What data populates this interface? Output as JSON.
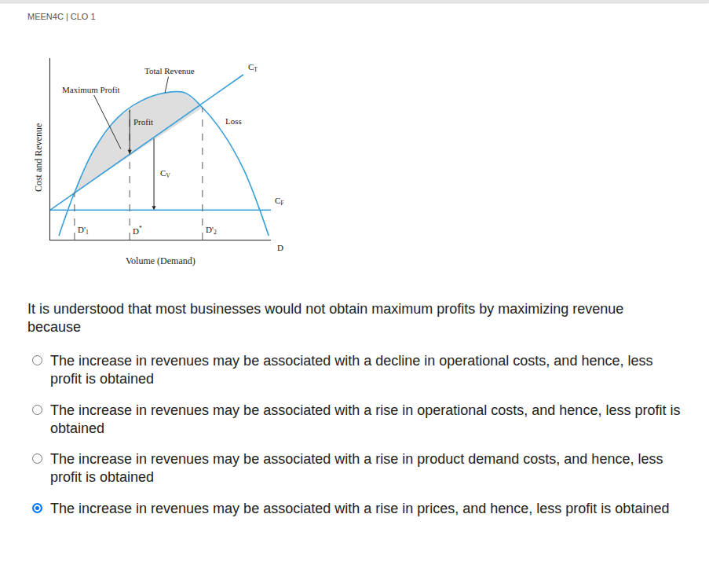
{
  "header": "MEEN4C | CLO 1",
  "chart_data": {
    "type": "line",
    "x_label": "Volume (Demand)",
    "y_label": "Cost and Revenue",
    "axis_end_label": "D",
    "xlim": [
      0,
      100
    ],
    "ylim": [
      0,
      110
    ],
    "xticks": [],
    "yticks": [],
    "tick_labels": false,
    "grid": false,
    "series": [
      {
        "name": "Total Revenue",
        "color": "#3a9fd8",
        "x": [
          3.9,
          11,
          20,
          30.6,
          41,
          52,
          61,
          69,
          78.6,
          87.5,
          94.7,
          99
        ],
        "values": [
          2.4,
          28.6,
          55,
          74,
          84,
          89,
          89,
          80,
          64,
          43,
          19,
          2.4
        ]
      },
      {
        "name": "C",
        "sub": "T",
        "color": "#3a9fd8",
        "x": [
          0,
          87.5
        ],
        "values": [
          18,
          100
        ]
      },
      {
        "name": "C",
        "sub": "F",
        "color": "#3a9fd8",
        "x": [
          0,
          100
        ],
        "values": [
          18,
          18
        ]
      }
    ],
    "profit_region": {
      "from": 11,
      "to": 69
    },
    "demand_marks": [
      {
        "name": "D'",
        "sub": "1",
        "x": 11,
        "y": 28.6
      },
      {
        "name": "D",
        "sup": "*",
        "x": 36,
        "y": 79
      },
      {
        "name": "D'",
        "sub": "2",
        "x": 69,
        "y": 80
      }
    ],
    "profit": {
      "name": "Profit",
      "x": 36,
      "y_top": 79,
      "y_bottom": 52
    },
    "variable_cost": {
      "name": "C",
      "sub": "V",
      "x": 47,
      "y_top": 62,
      "y_bottom": 18
    },
    "maximum_profit": {
      "name": "Maximum Profit",
      "x": 32,
      "y": 55
    },
    "loss": {
      "name": "Loss",
      "x": 83,
      "y": 72
    }
  },
  "question": "It is understood that most businesses would not obtain maximum profits by maximizing revenue because",
  "options": [
    {
      "text": "The increase in revenues may be associated with a decline in operational costs, and hence, less profit is obtained",
      "selected": false
    },
    {
      "text": "The increase in revenues may be associated with a rise in operational costs, and hence, less profit is obtained",
      "selected": false
    },
    {
      "text": "The increase in revenues may be associated with a rise in product demand costs, and hence, less profit is obtained",
      "selected": false
    },
    {
      "text": "The increase in revenues may be associated with a rise in prices, and hence, less profit is obtained",
      "selected": true
    }
  ]
}
